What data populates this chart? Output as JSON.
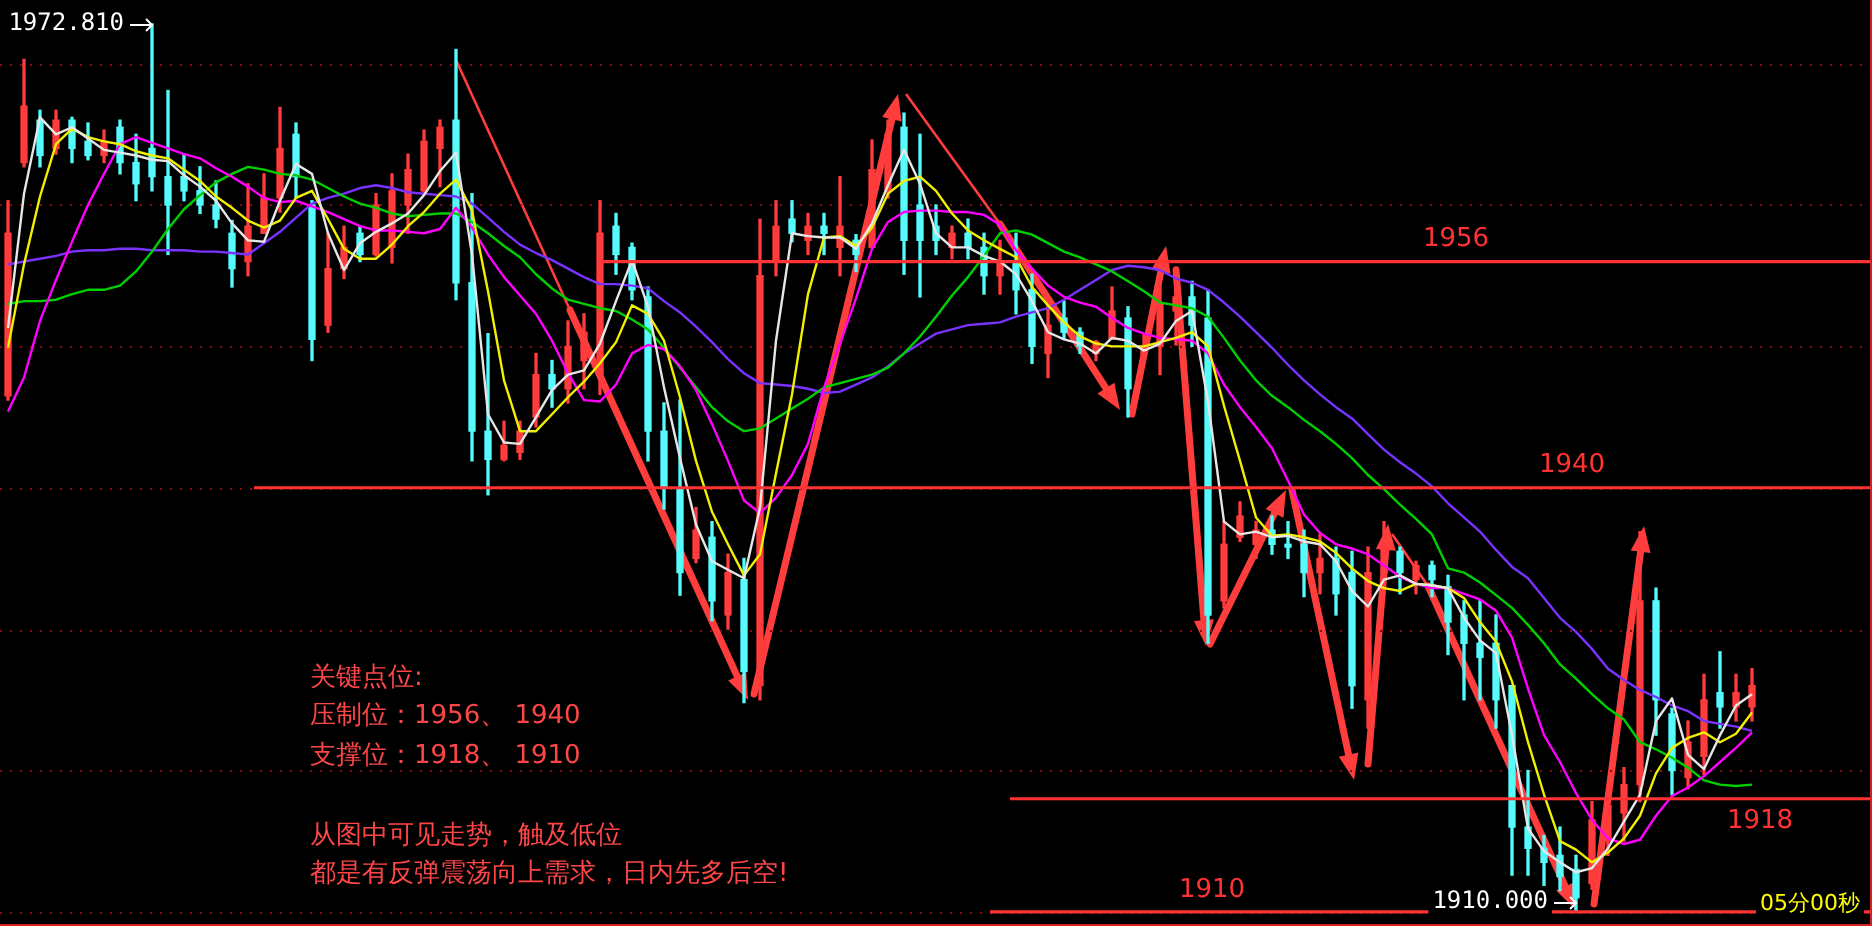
{
  "chart_data": {
    "type": "candlestick",
    "categories": [
      null,
      null,
      null,
      null,
      null,
      null,
      null,
      null,
      null,
      null,
      null,
      null,
      null,
      null,
      null,
      null,
      null,
      null,
      null,
      null,
      null,
      null,
      null,
      null,
      null,
      null,
      null,
      null,
      null,
      null,
      null,
      null,
      null,
      null,
      null,
      null,
      null,
      null,
      null,
      null,
      null,
      null,
      null,
      null,
      null,
      null,
      null,
      null,
      null,
      null,
      null,
      null,
      null,
      null,
      null,
      null,
      null,
      null,
      null,
      null,
      null,
      null,
      null,
      null,
      null,
      null,
      null,
      null,
      null,
      null,
      null,
      null,
      null,
      null,
      null,
      null,
      null,
      null,
      null,
      null,
      null,
      null,
      null,
      null,
      null,
      null,
      null,
      null,
      null,
      null,
      null,
      null,
      null,
      null,
      null,
      null,
      null,
      null,
      null,
      null,
      null,
      null,
      null,
      null,
      null,
      null,
      null,
      null,
      null,
      null
    ],
    "ohlc": [
      [
        1946.5,
        1960.3,
        1946.2,
        1958
      ],
      [
        1963,
        1970.3,
        1962.7,
        1967
      ],
      [
        1966,
        1966.7,
        1962.7,
        1963.5
      ],
      [
        1964,
        1966.7,
        1963.6,
        1966
      ],
      [
        1966,
        1966.2,
        1963,
        1964
      ],
      [
        1964.5,
        1965.8,
        1963.2,
        1963.5
      ],
      [
        1963.5,
        1965.3,
        1963,
        1964.5
      ],
      [
        1965.5,
        1966,
        1962.2,
        1963
      ],
      [
        1963,
        1965,
        1960.3,
        1961.5
      ],
      [
        1964,
        1972.81,
        1961,
        1962
      ],
      [
        1962,
        1968.1,
        1956.5,
        1960
      ],
      [
        1962,
        1963.6,
        1960.3,
        1961
      ],
      [
        1961,
        1962.7,
        1959.4,
        1960
      ],
      [
        1960,
        1961.7,
        1958.4,
        1959
      ],
      [
        1958,
        1958.9,
        1954.2,
        1955.5
      ],
      [
        1956,
        1961.5,
        1955,
        1958.5
      ],
      [
        1958,
        1962.2,
        1958,
        1960.5
      ],
      [
        1960.5,
        1966.9,
        1959.5,
        1964
      ],
      [
        1965,
        1965.8,
        1960.5,
        1962
      ],
      [
        1960,
        1960.3,
        1949,
        1950.5
      ],
      [
        1951.5,
        1958,
        1951,
        1955.5
      ],
      [
        1955.5,
        1958.5,
        1954.8,
        1957
      ],
      [
        1958,
        1958.5,
        1956,
        1956.5
      ],
      [
        1956.5,
        1960.8,
        1956.4,
        1960
      ],
      [
        1957,
        1962.2,
        1955.9,
        1961
      ],
      [
        1960,
        1963.6,
        1958,
        1962.5
      ],
      [
        1961,
        1965.3,
        1960.8,
        1964.5
      ],
      [
        1964,
        1966,
        1961.3,
        1965.5
      ],
      [
        1966,
        1971,
        1953.3,
        1954.5
      ],
      [
        1954.5,
        1960.8,
        1941.9,
        1944
      ],
      [
        1944,
        1950.9,
        1939.5,
        1942
      ],
      [
        1942,
        1944.7,
        1941.9,
        1943
      ],
      [
        1942.5,
        1944.7,
        1942,
        1944
      ],
      [
        1945,
        1949.5,
        1944.3,
        1948
      ],
      [
        1948,
        1949,
        1945.7,
        1947
      ],
      [
        1947,
        1951.8,
        1946,
        1950
      ],
      [
        1949,
        1952.3,
        1947,
        1951
      ],
      [
        1948,
        1960.3,
        1946.6,
        1958
      ],
      [
        1958.5,
        1959.4,
        1955.1,
        1956.5
      ],
      [
        1957,
        1957.3,
        1953.3,
        1954
      ],
      [
        1953.5,
        1954.2,
        1941.9,
        1944
      ],
      [
        1944,
        1946,
        1938.5,
        1940
      ],
      [
        1940,
        1946.2,
        1932.4,
        1934
      ],
      [
        1935,
        1938.6,
        1934.7,
        1937
      ],
      [
        1936.5,
        1937.6,
        1930.6,
        1932
      ],
      [
        1931,
        1935.3,
        1930,
        1934
      ],
      [
        1933.5,
        1935,
        1924.8,
        1927
      ],
      [
        1926,
        1959,
        1925,
        1955
      ],
      [
        1956,
        1960.3,
        1955,
        1958.5
      ],
      [
        1959,
        1960.3,
        1957.4,
        1958
      ],
      [
        1957.5,
        1959.4,
        1956.5,
        1958.5
      ],
      [
        1958.5,
        1959.4,
        1956.5,
        1958
      ],
      [
        1957,
        1962,
        1955,
        1958.5
      ],
      [
        1957.5,
        1957.9,
        1955.3,
        1956.5
      ],
      [
        1957,
        1964.6,
        1957,
        1962.5
      ],
      [
        1961,
        1966,
        1960.5,
        1965
      ],
      [
        1965.5,
        1966.5,
        1955.1,
        1957.5
      ],
      [
        1960,
        1965,
        1953.5,
        1957.5
      ],
      [
        1958.5,
        1960,
        1956.5,
        1957.5
      ],
      [
        1957,
        1958.5,
        1956.2,
        1958
      ],
      [
        1958,
        1959,
        1956.2,
        1957
      ],
      [
        1957,
        1958,
        1953.7,
        1955
      ],
      [
        1955,
        1957.5,
        1953.7,
        1956
      ],
      [
        1956,
        1958,
        1952.3,
        1954
      ],
      [
        1954,
        1955.1,
        1948.8,
        1950
      ],
      [
        1949.5,
        1953.2,
        1947.8,
        1951.5
      ],
      [
        1952,
        1953.2,
        1950.5,
        1951
      ],
      [
        1951,
        1951.3,
        1949.5,
        1950
      ],
      [
        1949.5,
        1950.4,
        1949,
        1950.3
      ],
      [
        1950.5,
        1954.2,
        1950.5,
        1952.5
      ],
      [
        1952,
        1952.8,
        1945,
        1947
      ],
      [
        1949.5,
        1950.9,
        1948.8,
        1950
      ],
      [
        1950,
        1954.6,
        1948,
        1953
      ],
      [
        1952.5,
        1955.6,
        1950.1,
        1953.5
      ],
      [
        1953.5,
        1954.6,
        1950,
        1951.5
      ],
      [
        1952,
        1954,
        1929,
        1931
      ],
      [
        1932,
        1937.6,
        1931.5,
        1936
      ],
      [
        1936.5,
        1939,
        1936.2,
        1938
      ],
      [
        1936,
        1937.6,
        1935,
        1937
      ],
      [
        1937,
        1938,
        1935.3,
        1936
      ],
      [
        1936,
        1937.6,
        1935,
        1935.8
      ],
      [
        1936,
        1937,
        1932.3,
        1934
      ],
      [
        1934,
        1936.7,
        1932.5,
        1935
      ],
      [
        1935,
        1935.8,
        1931,
        1932.5
      ],
      [
        1934,
        1935.5,
        1924.4,
        1926
      ],
      [
        1925,
        1935.8,
        1923,
        1934
      ],
      [
        1934,
        1937.6,
        1932.8,
        1936
      ],
      [
        1935.5,
        1935.8,
        1932.5,
        1934
      ],
      [
        1933.5,
        1934.8,
        1932.5,
        1934.5
      ],
      [
        1934.5,
        1934.8,
        1932.3,
        1933.5
      ],
      [
        1933,
        1933.8,
        1928.2,
        1930.5
      ],
      [
        1931,
        1932,
        1925,
        1929
      ],
      [
        1929,
        1932,
        1925,
        1928
      ],
      [
        1929,
        1931,
        1923,
        1925
      ],
      [
        1926,
        1926,
        1912.6,
        1916
      ],
      [
        1916,
        1920,
        1912.6,
        1914.5
      ],
      [
        1914.5,
        1915.4,
        1911.7,
        1913.5
      ],
      [
        1914,
        1916,
        1911.5,
        1912.5
      ],
      [
        1913,
        1914,
        1910,
        1911
      ],
      [
        1912,
        1917.8,
        1911.6,
        1916.5
      ],
      [
        1915,
        1918.7,
        1914,
        1917.5
      ],
      [
        1917,
        1920.2,
        1915,
        1919
      ],
      [
        1919,
        1936.9,
        1917.8,
        1932
      ],
      [
        1932,
        1932.9,
        1922.5,
        1925
      ],
      [
        1924,
        1924.4,
        1918.3,
        1920
      ],
      [
        1919.5,
        1923.5,
        1918.7,
        1922
      ],
      [
        1921,
        1926.8,
        1919.7,
        1925
      ],
      [
        1925.5,
        1928.4,
        1923,
        1924.5
      ],
      [
        1924.5,
        1926.8,
        1923.5,
        1925.5
      ],
      [
        1924.5,
        1927.2,
        1923.5,
        1926
      ]
    ],
    "colors": [
      "#ff3b3b",
      "#ff3b3b",
      "#54fcfc",
      "#ff3b3b",
      "#54fcfc",
      "#54fcfc",
      "#ff3b3b",
      "#54fcfc",
      "#54fcfc",
      "#54fcfc",
      "#54fcfc",
      "#54fcfc",
      "#54fcfc",
      "#54fcfc",
      "#54fcfc",
      "#ff3b3b",
      "#ff3b3b",
      "#ff3b3b",
      "#54fcfc",
      "#54fcfc",
      "#ff3b3b",
      "#ff3b3b",
      "#54fcfc",
      "#ff3b3b",
      "#ff3b3b",
      "#ff3b3b",
      "#ff3b3b",
      "#ff3b3b",
      "#54fcfc",
      "#54fcfc",
      "#54fcfc",
      "#ff3b3b",
      "#ff3b3b",
      "#ff3b3b",
      "#54fcfc",
      "#ff3b3b",
      "#ff3b3b",
      "#ff3b3b",
      "#54fcfc",
      "#54fcfc",
      "#54fcfc",
      "#54fcfc",
      "#54fcfc",
      "#ff3b3b",
      "#54fcfc",
      "#ff3b3b",
      "#54fcfc",
      "#ff3b3b",
      "#ff3b3b",
      "#54fcfc",
      "#ff3b3b",
      "#54fcfc",
      "#ff3b3b",
      "#54fcfc",
      "#ff3b3b",
      "#ff3b3b",
      "#54fcfc",
      "#54fcfc",
      "#54fcfc",
      "#ff3b3b",
      "#54fcfc",
      "#54fcfc",
      "#ff3b3b",
      "#54fcfc",
      "#54fcfc",
      "#ff3b3b",
      "#54fcfc",
      "#54fcfc",
      "#ff3b3b",
      "#ff3b3b",
      "#54fcfc",
      "#ff3b3b",
      "#ff3b3b",
      "#ff3b3b",
      "#54fcfc",
      "#54fcfc",
      "#ff3b3b",
      "#ff3b3b",
      "#ff3b3b",
      "#54fcfc",
      "#54fcfc",
      "#54fcfc",
      "#ff3b3b",
      "#54fcfc",
      "#54fcfc",
      "#ff3b3b",
      "#ff3b3b",
      "#54fcfc",
      "#ff3b3b",
      "#54fcfc",
      "#54fcfc",
      "#54fcfc",
      "#54fcfc",
      "#54fcfc",
      "#54fcfc",
      "#54fcfc",
      "#54fcfc",
      "#54fcfc",
      "#54fcfc",
      "#ff3b3b",
      "#ff3b3b",
      "#ff3b3b",
      "#ff3b3b",
      "#54fcfc",
      "#54fcfc",
      "#ff3b3b",
      "#ff3b3b",
      "#54fcfc",
      "#ff3b3b",
      "#ff3b3b"
    ],
    "series": [
      {
        "type": "line",
        "color": "#e6e6e6",
        "values": [
          1951.3,
          1960.8,
          1966.2,
          1965.0,
          1965.5,
          1964.7,
          1963.9,
          1963.7,
          1963.5,
          1963.2,
          1963.1,
          1962.1,
          1961.3,
          1960.3,
          1958.7,
          1957.5,
          1957.4,
          1960.3,
          1962.9,
          1962.2,
          1958.0,
          1955.4,
          1957.3,
          1958.1,
          1958.7,
          1959.4,
          1960.7,
          1962.4,
          1963.7,
          1956.5,
          1945.2,
          1943.2,
          1943.1,
          1945.0,
          1946.9,
          1948.0,
          1948.3,
          1950.2,
          1953.2,
          1956.1,
          1952.8,
          1947.1,
          1942.1,
          1937.4,
          1934.8,
          1934.2,
          1933.6,
          1938.6,
          1950.4,
          1958.0,
          1957.8,
          1957.7,
          1957.7,
          1956.9,
          1958.7,
          1961.4,
          1963.9,
          1961.5,
          1958.0,
          1957.0,
          1957.0,
          1956.4,
          1956.0,
          1955.1,
          1953.2,
          1951.0,
          1950.5,
          1950.2,
          1949.5,
          1950.6,
          1950.4,
          1949.7,
          1950.2,
          1951.8,
          1952.5,
          1946.1,
          1937.6,
          1936.7,
          1936.9,
          1936.5,
          1936.6,
          1936.2,
          1936.0,
          1934.8,
          1932.7,
          1931.6,
          1933.5,
          1933.8,
          1933.2,
          1933.1,
          1932.9,
          1930.8,
          1929.2,
          1928.3,
          1922.5,
          1915.9,
          1914.3,
          1913.5,
          1912.8,
          1913.1,
          1914.5,
          1916.4,
          1918.3,
          1923.5,
          1925.1,
          1921.1,
          1920.1,
          1922.5,
          1924.6,
          1925.4
        ]
      },
      {
        "type": "line",
        "color": "#f0f000",
        "values": [
          1949.9,
          1955.8,
          1960.6,
          1964.3,
          1965.4,
          1964.8,
          1964.5,
          1964.3,
          1963.8,
          1963.5,
          1963.3,
          1962.5,
          1961.7,
          1960.6,
          1959.8,
          1958.9,
          1958.4,
          1958.9,
          1960.5,
          1961.0,
          1959.0,
          1956.9,
          1956.2,
          1956.2,
          1957.2,
          1958.5,
          1959.5,
          1960.8,
          1961.8,
          1959.6,
          1953.9,
          1947.6,
          1944.0,
          1944.0,
          1945.2,
          1946.4,
          1947.5,
          1948.8,
          1950.3,
          1952.9,
          1952.3,
          1950.4,
          1946.4,
          1941.9,
          1938.3,
          1936.0,
          1933.8,
          1935.3,
          1941.0,
          1946.6,
          1953.7,
          1957.7,
          1957.8,
          1957.1,
          1958.4,
          1960.8,
          1961.7,
          1962.0,
          1961.0,
          1959.4,
          1958.2,
          1957.5,
          1956.9,
          1956.3,
          1954.2,
          1952.9,
          1951.7,
          1950.7,
          1950.2,
          1950.0,
          1950.0,
          1950.0,
          1950.3,
          1950.6,
          1951.0,
          1950.0,
          1945.8,
          1941.9,
          1937.9,
          1936.6,
          1936.7,
          1936.5,
          1936.2,
          1935.4,
          1934.3,
          1933.4,
          1932.9,
          1932.7,
          1933.2,
          1933.1,
          1932.9,
          1932.2,
          1930.5,
          1929.1,
          1926.3,
          1922.0,
          1918.3,
          1915.0,
          1914.4,
          1913.5,
          1914.2,
          1915.2,
          1916.8,
          1919.8,
          1921.6,
          1922.3,
          1922.7,
          1922.0,
          1922.6,
          1924.1
        ]
      },
      {
        "type": "line",
        "color": "#ff00ff",
        "values": [
          1945.4,
          1947.8,
          1951.8,
          1954.7,
          1957.4,
          1960.0,
          1962.2,
          1964.3,
          1964.8,
          1964.4,
          1964.0,
          1963.6,
          1963.3,
          1962.6,
          1962.0,
          1961.3,
          1960.5,
          1960.2,
          1960.3,
          1959.9,
          1959.5,
          1959.0,
          1958.5,
          1958.2,
          1958.2,
          1958.1,
          1958.0,
          1958.3,
          1959.8,
          1958.4,
          1956.5,
          1954.9,
          1953.6,
          1952.3,
          1950.4,
          1948.1,
          1946.2,
          1946.1,
          1947.3,
          1949.5,
          1950.1,
          1949.8,
          1948.6,
          1946.9,
          1944.5,
          1941.9,
          1939.1,
          1938.2,
          1939.3,
          1940.9,
          1943.1,
          1947.1,
          1950.2,
          1953.4,
          1956.9,
          1958.8,
          1959.5,
          1959.6,
          1959.6,
          1959.5,
          1959.5,
          1959.3,
          1958.6,
          1956.8,
          1955.5,
          1954.3,
          1953.5,
          1953.1,
          1952.8,
          1952.0,
          1951.3,
          1950.9,
          1950.6,
          1950.5,
          1950.4,
          1949.5,
          1947.3,
          1945.7,
          1944.3,
          1942.8,
          1940.5,
          1938.1,
          1936.8,
          1936.0,
          1935.7,
          1935.3,
          1934.5,
          1933.7,
          1933.2,
          1932.9,
          1932.9,
          1932.5,
          1932.1,
          1931.3,
          1929.4,
          1925.8,
          1922.5,
          1920.6,
          1918.4,
          1916.5,
          1915.2,
          1914.8,
          1915.1,
          1916.8,
          1918.2,
          1918.8,
          1919.6,
          1920.6,
          1921.6,
          1922.7
        ]
      },
      {
        "type": "line",
        "color": "#00d000",
        "values": [
          1953.0,
          1953.2,
          1953.2,
          1953.3,
          1953.7,
          1954.0,
          1954.0,
          1954.3,
          1955.3,
          1956.7,
          1958.3,
          1959.7,
          1960.7,
          1961.6,
          1962.2,
          1962.7,
          1962.5,
          1962.2,
          1962.1,
          1961.8,
          1961.2,
          1960.6,
          1960.1,
          1959.8,
          1959.4,
          1959.2,
          1959.3,
          1959.4,
          1959.4,
          1958.8,
          1958.0,
          1957.1,
          1956.3,
          1955.1,
          1954.1,
          1953.3,
          1953.0,
          1952.7,
          1952.5,
          1951.9,
          1951.2,
          1949.9,
          1948.5,
          1947.1,
          1945.7,
          1944.7,
          1944.0,
          1944.2,
          1944.9,
          1945.6,
          1946.3,
          1947.1,
          1947.4,
          1947.7,
          1948.0,
          1948.5,
          1949.5,
          1950.7,
          1952.1,
          1953.6,
          1954.9,
          1956.4,
          1958.0,
          1958.2,
          1957.9,
          1957.3,
          1956.7,
          1956.3,
          1955.8,
          1955.3,
          1954.6,
          1953.9,
          1953.1,
          1952.9,
          1952.7,
          1952.1,
          1950.6,
          1949.0,
          1947.6,
          1946.5,
          1945.7,
          1944.8,
          1944.0,
          1943.1,
          1942.1,
          1940.9,
          1939.9,
          1938.8,
          1937.8,
          1936.7,
          1934.3,
          1934.0,
          1933.3,
          1932.4,
          1931.5,
          1930.3,
          1929.0,
          1927.5,
          1926.5,
          1925.4,
          1924.4,
          1923.6,
          1922.0,
          1921.5,
          1920.9,
          1920.2,
          1919.3,
          1919.0,
          1918.9,
          1919.0
        ]
      },
      {
        "type": "line",
        "color": "#7a33ff",
        "values": [
          1955.8,
          1956.0,
          1956.2,
          1956.4,
          1956.7,
          1956.8,
          1956.8,
          1956.9,
          1956.9,
          1956.8,
          1956.8,
          1956.8,
          1956.7,
          1956.7,
          1956.6,
          1956.5,
          1957.3,
          1958.1,
          1959.1,
          1960.1,
          1960.5,
          1960.8,
          1961.2,
          1961.4,
          1961.2,
          1960.9,
          1960.8,
          1960.7,
          1960.6,
          1960.1,
          1959.1,
          1958.1,
          1957.2,
          1956.6,
          1956.1,
          1955.5,
          1954.9,
          1954.4,
          1954.4,
          1954.3,
          1954.1,
          1953.2,
          1952.4,
          1951.4,
          1950.3,
          1949.1,
          1948.1,
          1947.4,
          1947.3,
          1947.2,
          1947.0,
          1946.7,
          1946.8,
          1947.3,
          1947.8,
          1948.6,
          1949.5,
          1950.2,
          1950.9,
          1951.2,
          1951.5,
          1951.6,
          1951.7,
          1952.1,
          1952.4,
          1952.7,
          1953.3,
          1954.0,
          1954.7,
          1955.4,
          1955.7,
          1955.6,
          1955.4,
          1954.8,
          1954.5,
          1954.0,
          1953.1,
          1952.1,
          1951.0,
          1949.9,
          1948.7,
          1947.6,
          1946.6,
          1945.7,
          1944.9,
          1943.8,
          1942.7,
          1941.8,
          1941.0,
          1940.1,
          1938.9,
          1937.9,
          1936.9,
          1935.6,
          1934.4,
          1933.6,
          1932.2,
          1930.8,
          1929.8,
          1928.6,
          1927.2,
          1926.4,
          1925.7,
          1925.2,
          1924.6,
          1924.2,
          1923.5,
          1923.3,
          1923.1,
          1922.8
        ]
      }
    ],
    "ylim": [
      1909,
      1974.5
    ],
    "yticks": [
      {
        "value": 1910,
        "label": null
      },
      {
        "value": 1920,
        "label": null
      },
      {
        "value": 1930,
        "label": null
      },
      {
        "value": 1940,
        "label": null
      },
      {
        "value": 1950,
        "label": null
      },
      {
        "value": 1960,
        "label": null
      },
      {
        "value": 1970,
        "label": null
      }
    ],
    "tick_labels": false,
    "grid": "y",
    "ref_lines": [
      {
        "axis": "y",
        "value": 1956,
        "label": "1956",
        "color": "#ff3333"
      },
      {
        "axis": "y",
        "value": 1940,
        "label": "1940",
        "color": "#ff3333"
      },
      {
        "axis": "y",
        "value": 1918,
        "label": "1918",
        "color": "#ff3333"
      },
      {
        "axis": "y",
        "value": 1910,
        "label": "1910",
        "color": "#ff3333"
      }
    ],
    "annotations": [
      "1972.810",
      "关键点位:",
      "压制位：1956、 1940",
      "支撑位：1918、 1910",
      "从图中可见走势，触及低位",
      "都是有反弹震荡向上需求，日内先多后空!",
      "1910.000",
      "05分00秒"
    ]
  }
}
